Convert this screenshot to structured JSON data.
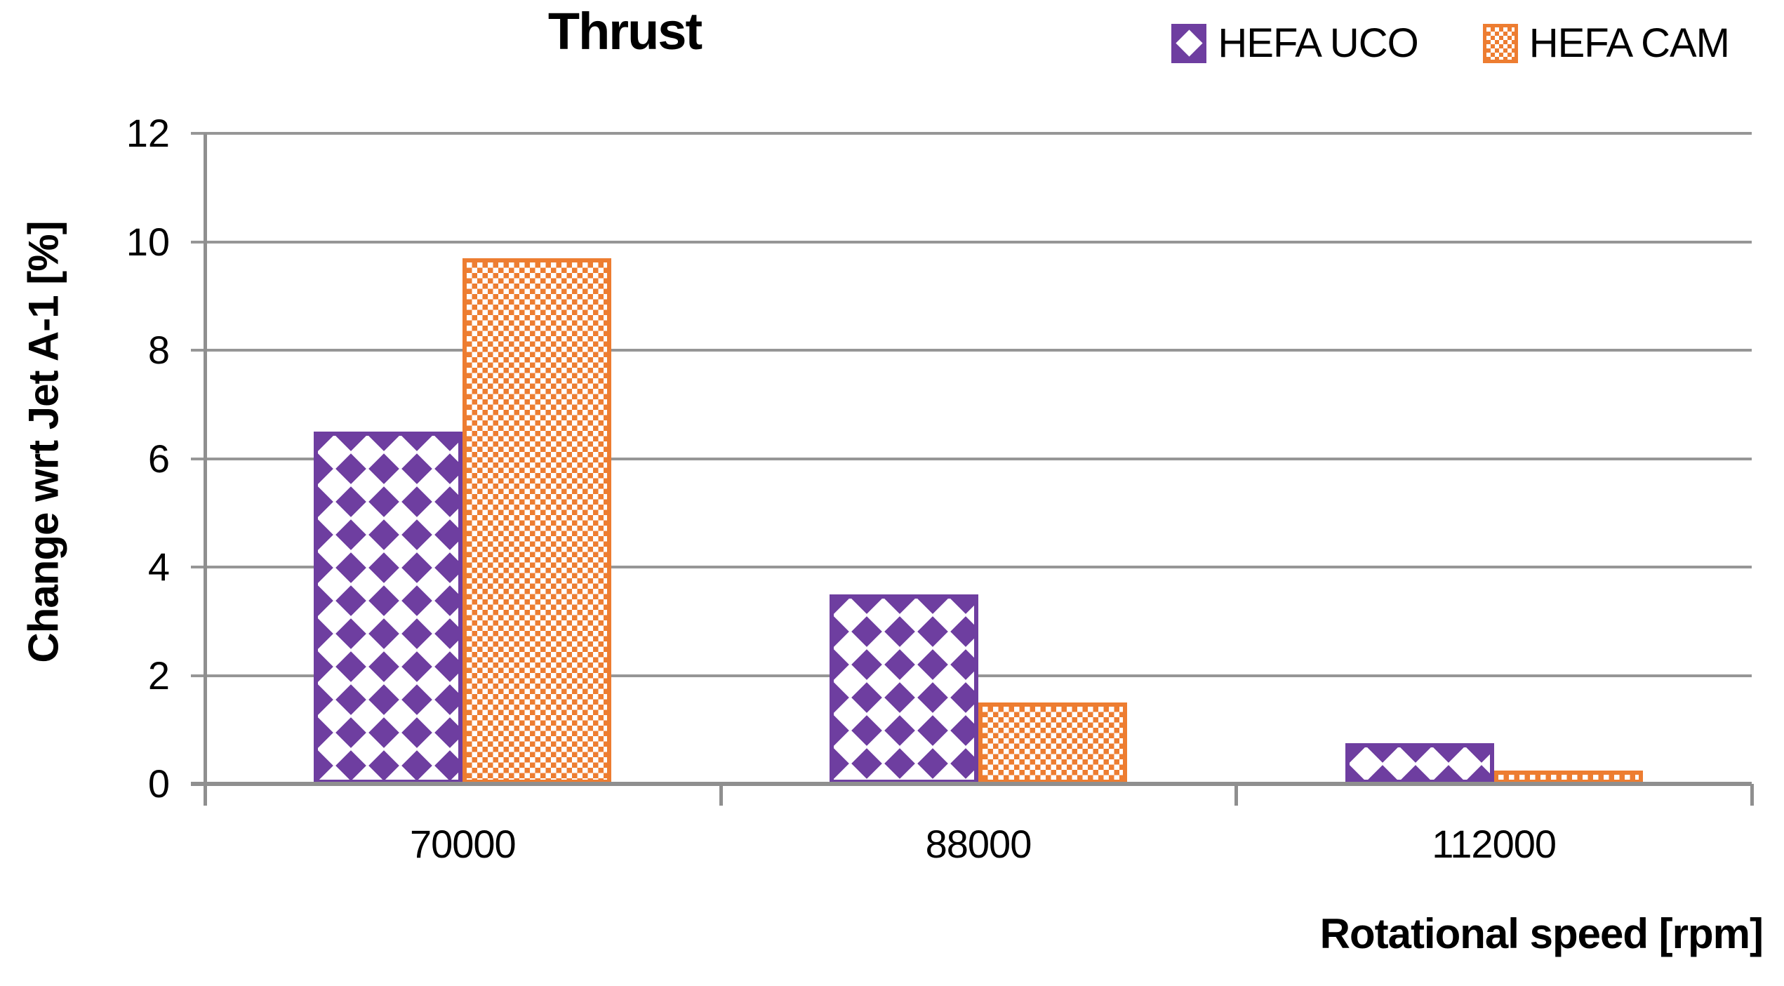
{
  "chart_data": {
    "type": "bar",
    "title": "Thrust",
    "categories": [
      "70000",
      "88000",
      "112000"
    ],
    "series": [
      {
        "name": "HEFA UCO",
        "values": [
          6.5,
          3.5,
          0.75
        ],
        "color": "#6E3EA0",
        "pattern": "diamond"
      },
      {
        "name": "HEFA CAM",
        "values": [
          9.7,
          1.5,
          0.25
        ],
        "color": "#ED7D31",
        "pattern": "checker"
      }
    ],
    "xlabel": "Rotational speed [rpm]",
    "ylabel": "Change wrt Jet A-1 [%]",
    "ylim": [
      0,
      12
    ],
    "yticks": [
      0,
      2,
      4,
      6,
      8,
      10,
      12
    ],
    "grid": true,
    "legend_position": "top-right",
    "grid_color": "#969696",
    "axis_color": "#8F8F8F",
    "text_color": "#000000"
  }
}
